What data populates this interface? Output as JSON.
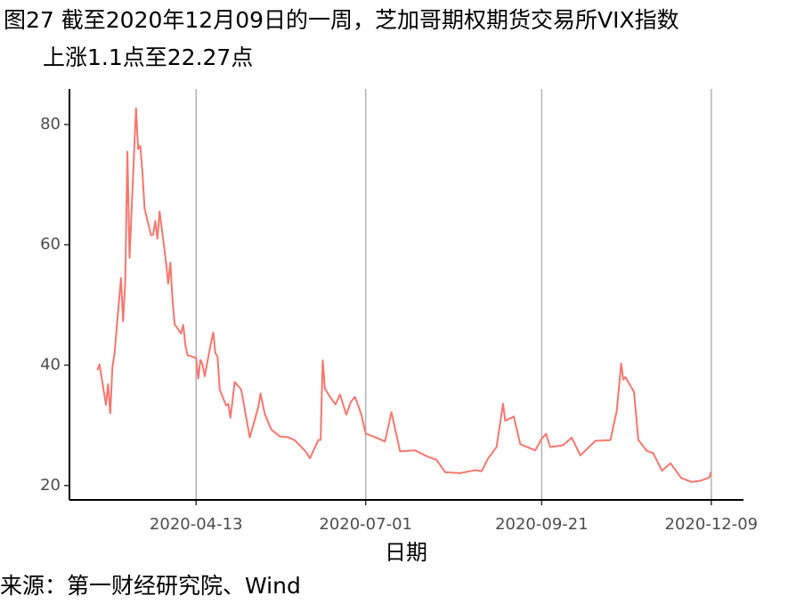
{
  "chart_data": {
    "type": "line",
    "title": [
      "图27  截至2020年12月09日的一周，芝加哥期权期货交易所VIX指数",
      "上涨1.1点至22.27点"
    ],
    "x_label": "日期",
    "source": "来源：第一财经研究院、Wind",
    "color": "#F8766D",
    "x": [
      "2020-02-27",
      "2020-02-28",
      "2020-03-02",
      "2020-03-03",
      "2020-03-04",
      "2020-03-05",
      "2020-03-06",
      "2020-03-09",
      "2020-03-10",
      "2020-03-11",
      "2020-03-12",
      "2020-03-13",
      "2020-03-16",
      "2020-03-17",
      "2020-03-18",
      "2020-03-19",
      "2020-03-20",
      "2020-03-23",
      "2020-03-24",
      "2020-03-25",
      "2020-03-26",
      "2020-03-27",
      "2020-03-30",
      "2020-03-31",
      "2020-04-01",
      "2020-04-02",
      "2020-04-03",
      "2020-04-06",
      "2020-04-07",
      "2020-04-08",
      "2020-04-09",
      "2020-04-13",
      "2020-04-14",
      "2020-04-15",
      "2020-04-16",
      "2020-04-17",
      "2020-04-20",
      "2020-04-21",
      "2020-04-22",
      "2020-04-23",
      "2020-04-24",
      "2020-04-27",
      "2020-04-28",
      "2020-04-29",
      "2020-04-30",
      "2020-05-01",
      "2020-05-04",
      "2020-05-08",
      "2020-05-12",
      "2020-05-13",
      "2020-05-15",
      "2020-05-18",
      "2020-05-22",
      "2020-05-26",
      "2020-05-29",
      "2020-06-03",
      "2020-06-05",
      "2020-06-09",
      "2020-06-10",
      "2020-06-11",
      "2020-06-12",
      "2020-06-15",
      "2020-06-17",
      "2020-06-19",
      "2020-06-22",
      "2020-06-24",
      "2020-06-26",
      "2020-06-29",
      "2020-07-01",
      "2020-07-06",
      "2020-07-10",
      "2020-07-13",
      "2020-07-17",
      "2020-07-24",
      "2020-07-30",
      "2020-08-03",
      "2020-08-07",
      "2020-08-14",
      "2020-08-21",
      "2020-08-24",
      "2020-08-27",
      "2020-08-31",
      "2020-09-03",
      "2020-09-04",
      "2020-09-08",
      "2020-09-11",
      "2020-09-18",
      "2020-09-21",
      "2020-09-23",
      "2020-09-25",
      "2020-10-01",
      "2020-10-05",
      "2020-10-09",
      "2020-10-16",
      "2020-10-23",
      "2020-10-26",
      "2020-10-28",
      "2020-10-29",
      "2020-10-30",
      "2020-11-03",
      "2020-11-05",
      "2020-11-09",
      "2020-11-12",
      "2020-11-16",
      "2020-11-20",
      "2020-11-25",
      "2020-11-30",
      "2020-12-04",
      "2020-12-08",
      "2020-12-09"
    ],
    "values": [
      39.16,
      40.11,
      33.42,
      36.82,
      31.99,
      39.62,
      41.94,
      54.46,
      47.3,
      53.9,
      75.47,
      57.83,
      82.69,
      75.91,
      76.45,
      72.0,
      66.04,
      61.59,
      61.67,
      63.95,
      61.0,
      65.54,
      57.08,
      53.54,
      57.06,
      50.91,
      46.8,
      45.24,
      46.7,
      43.35,
      41.67,
      41.17,
      37.76,
      40.84,
      40.11,
      38.15,
      43.83,
      45.41,
      41.98,
      41.38,
      35.93,
      33.29,
      33.57,
      31.23,
      34.15,
      37.19,
      35.97,
      27.98,
      33.04,
      35.28,
      31.89,
      29.3,
      28.16,
      28.01,
      27.51,
      25.66,
      24.52,
      27.57,
      27.57,
      40.79,
      36.09,
      34.4,
      33.47,
      35.12,
      31.77,
      33.84,
      34.73,
      31.78,
      28.62,
      27.94,
      27.29,
      32.19,
      25.68,
      25.84,
      24.76,
      24.28,
      22.21,
      22.05,
      22.54,
      22.37,
      24.47,
      26.41,
      33.6,
      30.75,
      31.46,
      26.87,
      25.83,
      27.78,
      28.58,
      26.38,
      26.7,
      27.96,
      25.0,
      27.41,
      27.55,
      32.46,
      40.28,
      37.59,
      38.02,
      35.55,
      27.58,
      25.75,
      25.35,
      22.45,
      23.7,
      21.25,
      20.57,
      20.79,
      21.3,
      22.27
    ],
    "xlim": [
      "2020-02-14",
      "2020-12-24"
    ],
    "xticks": [
      "2020-04-13",
      "2020-07-01",
      "2020-09-21",
      "2020-12-09"
    ],
    "ylim": [
      17.6,
      85.9
    ],
    "yticks": [
      20,
      40,
      60,
      80
    ],
    "grid": "x"
  }
}
